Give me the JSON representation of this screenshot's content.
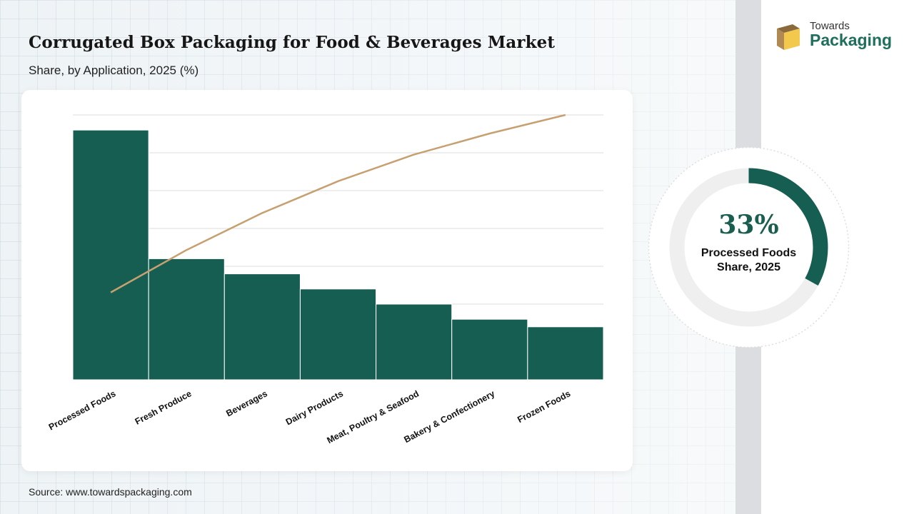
{
  "header": {
    "title": "Corrugated Box Packaging for Food & Beverages Market",
    "subtitle": "Share, by Application, 2025 (%)"
  },
  "logo": {
    "line1": "Towards",
    "line2": "Packaging"
  },
  "chart_data": {
    "type": "bar",
    "categories": [
      "Processed Foods",
      "Fresh Produce",
      "Beverages",
      "Dairy Products",
      "Meat, Poultry & Seafood",
      "Bakery & Confectionery",
      "Frozen Foods"
    ],
    "values": [
      33,
      16,
      14,
      12,
      10,
      8,
      7
    ],
    "cumulative_line": [
      33,
      49,
      63,
      75,
      85,
      93,
      100
    ],
    "ylim": [
      0,
      35
    ],
    "grid": true,
    "colors": {
      "bar": "#175e52",
      "line": "#c7a071"
    }
  },
  "highlight": {
    "value": "33%",
    "label_line1": "Processed Foods",
    "label_line2": "Share, 2025",
    "fraction": 0.33,
    "colors": {
      "arc": "#175e52",
      "track": "#efefef"
    }
  },
  "footer": {
    "source": "Source: www.towardspackaging.com"
  }
}
